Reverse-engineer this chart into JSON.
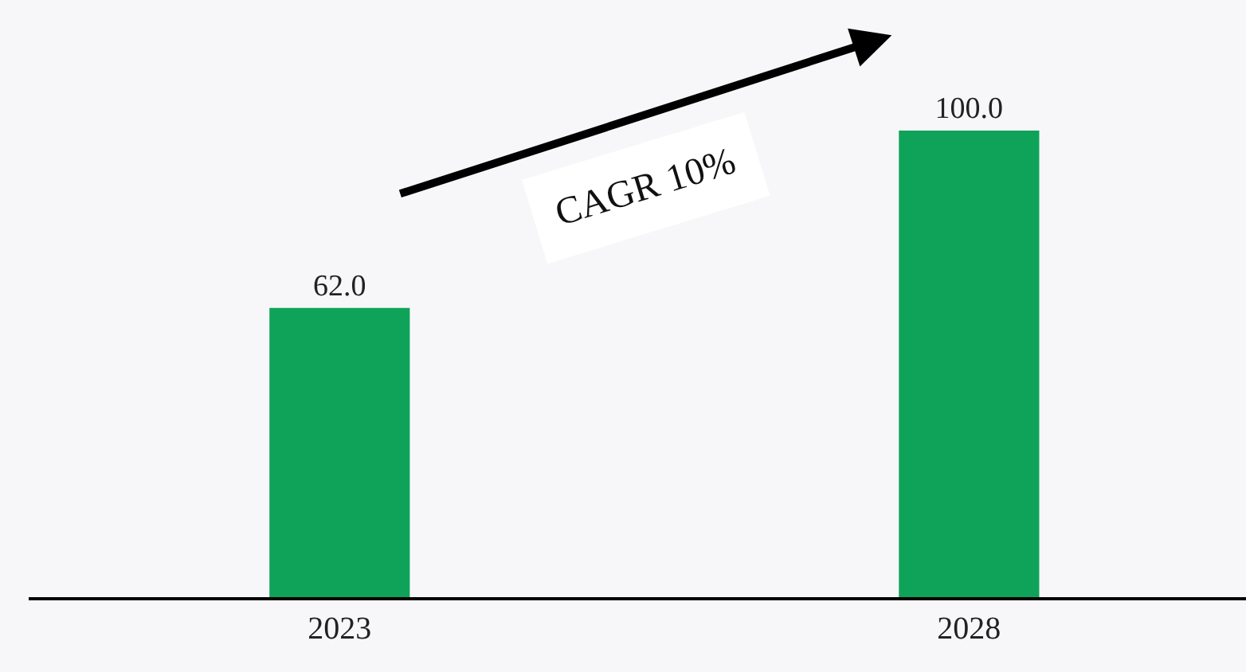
{
  "chart_data": {
    "type": "bar",
    "categories": [
      "2023",
      "2028"
    ],
    "values": [
      62.0,
      100.0
    ],
    "value_labels": [
      "62.0",
      "100.0"
    ],
    "color": "#0fa35a",
    "ylim": [
      0,
      128
    ],
    "annotations": [
      "CAGR 10%"
    ]
  }
}
